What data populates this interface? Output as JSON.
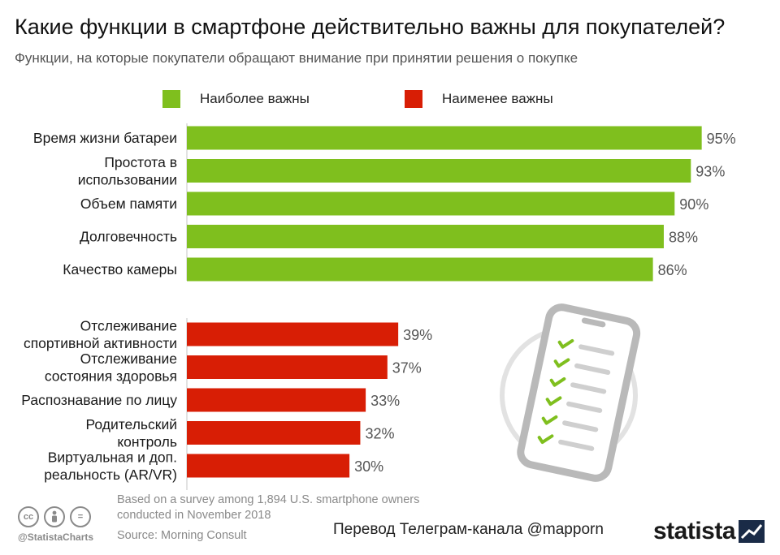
{
  "header": {
    "title": "Какие функции в смартфоне действительно важны для покупателей?",
    "subtitle": "Функции, на которые покупатели обращают внимание при принятии решения о покупке"
  },
  "legend": [
    {
      "label": "Наиболее важны",
      "color": "#7fbf1e"
    },
    {
      "label": "Наименее важны",
      "color": "#d81e05"
    }
  ],
  "chart_data": {
    "type": "bar",
    "orientation": "horizontal",
    "unit": "%",
    "xlim": [
      0,
      100
    ],
    "grid": false,
    "legend_position": "top",
    "groups": [
      {
        "name": "Наиболее важны",
        "color": "#7fbf1e",
        "categories": [
          [
            "Время жизни батареи"
          ],
          [
            "Простота в",
            "использовании"
          ],
          [
            "Объем памяти"
          ],
          [
            "Долговечность"
          ],
          [
            "Качество камеры"
          ]
        ],
        "values": [
          95,
          93,
          90,
          88,
          86
        ]
      },
      {
        "name": "Наименее важны",
        "color": "#d81e05",
        "categories": [
          [
            "Отслеживание",
            "спортивной активности"
          ],
          [
            "Отслеживание",
            "состояния здоровья"
          ],
          [
            "Распознавание по лицу"
          ],
          [
            "Родительский",
            "контроль"
          ],
          [
            "Виртуальная и доп.",
            "реальность (AR/VR)"
          ]
        ],
        "values": [
          39,
          37,
          33,
          32,
          30
        ]
      }
    ]
  },
  "footer": {
    "note": "Based on a survey among 1,894 U.S. smartphone owners conducted in November 2018",
    "source": "Source: Morning Consult",
    "handle": "@StatistaCharts",
    "credit": "Перевод Телеграм-канала @mapporn",
    "brand": "statista",
    "license_icons": [
      "creative-commons-icon",
      "attribution-icon",
      "no-derivatives-icon"
    ]
  }
}
